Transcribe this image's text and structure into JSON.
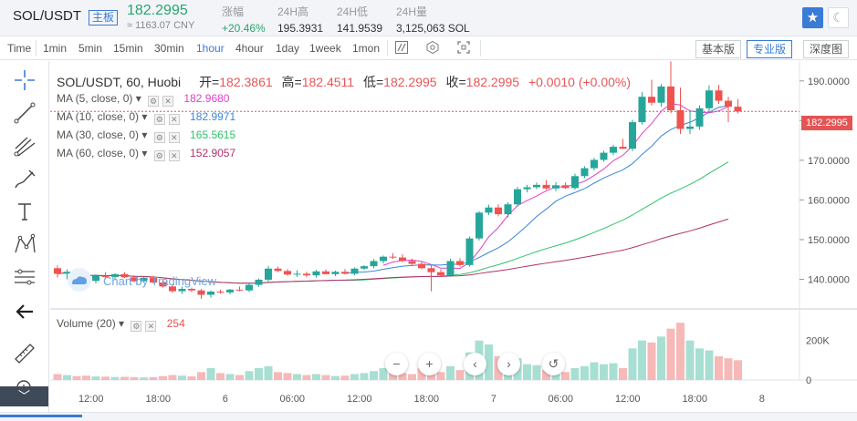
{
  "ticker": {
    "pair": "SOL/USDT",
    "pair_tag": "主板",
    "price": "182.2995",
    "cny": "≈ 1163.07 CNY",
    "stats": [
      {
        "label": "涨幅",
        "value": "+20.46%"
      },
      {
        "label": "24H高",
        "value": "195.3931"
      },
      {
        "label": "24H低",
        "value": "141.9539"
      },
      {
        "label": "24H量",
        "value": "3,125,063 SOL"
      }
    ]
  },
  "toolbar": {
    "timeframes": [
      "Time",
      "1min",
      "5min",
      "15min",
      "30min",
      "1hour",
      "4hour",
      "1day",
      "1week",
      "1mon"
    ],
    "active_timeframe": "1hour",
    "modes": [
      "基本版",
      "专业版",
      "深度图"
    ],
    "active_mode": "专业版"
  },
  "chart": {
    "title": "SOL/USDT, 60, Huobi",
    "ohlc": {
      "open_label": "开=",
      "open": "182.3861",
      "high_label": "高=",
      "high": "182.4511",
      "low_label": "低=",
      "low": "182.2995",
      "close_label": "收=",
      "close": "182.2995",
      "change": "+0.0010 (+0.00%)"
    },
    "mas": [
      {
        "label": "MA (5, close, 0)",
        "value": "182.9680",
        "color": "#e040c8"
      },
      {
        "label": "MA (10, close, 0)",
        "value": "182.9971",
        "color": "#3a86d8"
      },
      {
        "label": "MA (30, close, 0)",
        "value": "165.5615",
        "color": "#2ec36a"
      },
      {
        "label": "MA (60, close, 0)",
        "value": "152.9057",
        "color": "#b2306b"
      }
    ],
    "volume_label": "Volume (20)",
    "volume_value": "254",
    "last_price_tag": "182.2995",
    "price_axis": [
      "190.0000",
      "180.0000",
      "170.0000",
      "160.0000",
      "150.0000",
      "140.0000"
    ],
    "volume_axis": [
      "200K",
      "0"
    ],
    "time_axis": [
      "12:00",
      "18:00",
      "6",
      "06:00",
      "12:00",
      "18:00",
      "7",
      "06:00",
      "12:00",
      "18:00",
      "8"
    ],
    "watermark": "Chart by TradingView"
  },
  "colors": {
    "up": "#26a69a",
    "down": "#ef5350",
    "accent": "#3a7bd5"
  },
  "chart_data": {
    "type": "candlestick",
    "title": "SOL/USDT, 60, Huobi",
    "y_range": [
      133,
      195
    ],
    "volume_range": [
      0,
      300000
    ],
    "candles": [
      {
        "o": 142.8,
        "h": 143.5,
        "l": 140.5,
        "c": 141.4,
        "v": 30000
      },
      {
        "o": 141.4,
        "h": 142.5,
        "l": 140.0,
        "c": 141.9,
        "v": 25000
      },
      {
        "o": 141.9,
        "h": 142.8,
        "l": 140.8,
        "c": 141.1,
        "v": 20000
      },
      {
        "o": 141.1,
        "h": 141.9,
        "l": 139.4,
        "c": 139.6,
        "v": 22000
      },
      {
        "o": 139.6,
        "h": 141.2,
        "l": 139.0,
        "c": 140.9,
        "v": 18000
      },
      {
        "o": 140.9,
        "h": 141.8,
        "l": 140.1,
        "c": 140.6,
        "v": 17000
      },
      {
        "o": 140.6,
        "h": 141.5,
        "l": 139.8,
        "c": 141.3,
        "v": 15000
      },
      {
        "o": 141.3,
        "h": 141.8,
        "l": 140.3,
        "c": 140.5,
        "v": 16000
      },
      {
        "o": 140.5,
        "h": 141.0,
        "l": 139.3,
        "c": 139.5,
        "v": 14000
      },
      {
        "o": 139.5,
        "h": 140.8,
        "l": 139.2,
        "c": 140.4,
        "v": 13000
      },
      {
        "o": 140.4,
        "h": 140.9,
        "l": 139.0,
        "c": 139.2,
        "v": 14000
      },
      {
        "o": 139.2,
        "h": 140.1,
        "l": 137.9,
        "c": 138.2,
        "v": 20000
      },
      {
        "o": 138.2,
        "h": 138.8,
        "l": 136.6,
        "c": 137.0,
        "v": 25000
      },
      {
        "o": 137.0,
        "h": 138.2,
        "l": 136.3,
        "c": 137.6,
        "v": 22000
      },
      {
        "o": 137.6,
        "h": 137.9,
        "l": 136.8,
        "c": 137.2,
        "v": 18000
      },
      {
        "o": 137.2,
        "h": 137.6,
        "l": 135.1,
        "c": 136.1,
        "v": 40000
      },
      {
        "o": 136.1,
        "h": 137.2,
        "l": 135.4,
        "c": 136.9,
        "v": 60000
      },
      {
        "o": 136.9,
        "h": 137.4,
        "l": 136.4,
        "c": 136.7,
        "v": 35000
      },
      {
        "o": 136.7,
        "h": 137.6,
        "l": 136.2,
        "c": 137.4,
        "v": 30000
      },
      {
        "o": 137.4,
        "h": 138.2,
        "l": 137.0,
        "c": 137.2,
        "v": 25000
      },
      {
        "o": 137.2,
        "h": 138.9,
        "l": 136.8,
        "c": 138.6,
        "v": 45000
      },
      {
        "o": 138.6,
        "h": 140.2,
        "l": 138.1,
        "c": 139.9,
        "v": 60000
      },
      {
        "o": 139.9,
        "h": 143.4,
        "l": 139.3,
        "c": 142.7,
        "v": 70000
      },
      {
        "o": 142.7,
        "h": 143.2,
        "l": 141.8,
        "c": 142.1,
        "v": 40000
      },
      {
        "o": 142.1,
        "h": 142.6,
        "l": 140.9,
        "c": 141.2,
        "v": 35000
      },
      {
        "o": 141.2,
        "h": 142.3,
        "l": 140.6,
        "c": 141.4,
        "v": 30000
      },
      {
        "o": 141.4,
        "h": 141.9,
        "l": 140.5,
        "c": 141.0,
        "v": 25000
      },
      {
        "o": 141.0,
        "h": 142.4,
        "l": 140.4,
        "c": 142.0,
        "v": 30000
      },
      {
        "o": 142.0,
        "h": 142.5,
        "l": 141.2,
        "c": 141.3,
        "v": 25000
      },
      {
        "o": 141.3,
        "h": 142.2,
        "l": 140.8,
        "c": 141.9,
        "v": 20000
      },
      {
        "o": 141.9,
        "h": 142.6,
        "l": 141.2,
        "c": 141.4,
        "v": 22000
      },
      {
        "o": 141.4,
        "h": 143.0,
        "l": 141.0,
        "c": 142.7,
        "v": 30000
      },
      {
        "o": 142.7,
        "h": 143.6,
        "l": 142.3,
        "c": 143.3,
        "v": 35000
      },
      {
        "o": 143.3,
        "h": 145.1,
        "l": 142.8,
        "c": 144.6,
        "v": 45000
      },
      {
        "o": 144.6,
        "h": 146.0,
        "l": 144.0,
        "c": 145.7,
        "v": 60000
      },
      {
        "o": 145.7,
        "h": 146.6,
        "l": 145.1,
        "c": 145.5,
        "v": 40000
      },
      {
        "o": 145.5,
        "h": 146.3,
        "l": 144.3,
        "c": 144.6,
        "v": 35000
      },
      {
        "o": 144.6,
        "h": 145.2,
        "l": 143.6,
        "c": 143.9,
        "v": 30000
      },
      {
        "o": 143.9,
        "h": 144.6,
        "l": 142.6,
        "c": 142.8,
        "v": 60000
      },
      {
        "o": 142.8,
        "h": 143.8,
        "l": 137.0,
        "c": 141.8,
        "v": 85000
      },
      {
        "o": 141.8,
        "h": 142.6,
        "l": 140.8,
        "c": 141.0,
        "v": 40000
      },
      {
        "o": 141.0,
        "h": 145.2,
        "l": 140.6,
        "c": 144.6,
        "v": 70000
      },
      {
        "o": 144.6,
        "h": 145.3,
        "l": 143.2,
        "c": 143.6,
        "v": 50000
      },
      {
        "o": 143.6,
        "h": 150.8,
        "l": 143.2,
        "c": 150.3,
        "v": 140000
      },
      {
        "o": 150.3,
        "h": 157.2,
        "l": 149.8,
        "c": 156.8,
        "v": 200000
      },
      {
        "o": 156.8,
        "h": 158.8,
        "l": 156.2,
        "c": 158.1,
        "v": 180000
      },
      {
        "o": 158.1,
        "h": 158.9,
        "l": 155.9,
        "c": 156.4,
        "v": 120000
      },
      {
        "o": 156.4,
        "h": 159.4,
        "l": 155.6,
        "c": 158.9,
        "v": 90000
      },
      {
        "o": 158.9,
        "h": 163.3,
        "l": 158.3,
        "c": 162.7,
        "v": 110000
      },
      {
        "o": 162.7,
        "h": 163.8,
        "l": 161.9,
        "c": 163.2,
        "v": 80000
      },
      {
        "o": 163.2,
        "h": 164.4,
        "l": 162.7,
        "c": 163.8,
        "v": 75000
      },
      {
        "o": 163.8,
        "h": 165.0,
        "l": 162.6,
        "c": 162.9,
        "v": 50000
      },
      {
        "o": 162.9,
        "h": 164.5,
        "l": 162.2,
        "c": 163.7,
        "v": 45000
      },
      {
        "o": 163.7,
        "h": 164.4,
        "l": 162.8,
        "c": 163.0,
        "v": 40000
      },
      {
        "o": 163.0,
        "h": 166.6,
        "l": 162.6,
        "c": 166.0,
        "v": 60000
      },
      {
        "o": 166.0,
        "h": 168.5,
        "l": 165.5,
        "c": 168.0,
        "v": 70000
      },
      {
        "o": 168.0,
        "h": 170.6,
        "l": 167.4,
        "c": 170.1,
        "v": 90000
      },
      {
        "o": 170.1,
        "h": 172.4,
        "l": 169.6,
        "c": 171.9,
        "v": 80000
      },
      {
        "o": 171.9,
        "h": 173.9,
        "l": 171.3,
        "c": 173.4,
        "v": 85000
      },
      {
        "o": 173.4,
        "h": 175.4,
        "l": 172.8,
        "c": 172.9,
        "v": 60000
      },
      {
        "o": 172.9,
        "h": 180.2,
        "l": 172.3,
        "c": 179.6,
        "v": 160000
      },
      {
        "o": 179.6,
        "h": 187.2,
        "l": 179.0,
        "c": 186.0,
        "v": 200000
      },
      {
        "o": 186.0,
        "h": 190.3,
        "l": 183.8,
        "c": 184.5,
        "v": 190000
      },
      {
        "o": 184.5,
        "h": 189.2,
        "l": 183.5,
        "c": 188.6,
        "v": 220000
      },
      {
        "o": 188.6,
        "h": 194.9,
        "l": 181.9,
        "c": 182.6,
        "v": 260000
      },
      {
        "o": 182.6,
        "h": 188.3,
        "l": 176.6,
        "c": 177.9,
        "v": 290000
      },
      {
        "o": 177.9,
        "h": 182.7,
        "l": 176.6,
        "c": 178.5,
        "v": 200000
      },
      {
        "o": 178.5,
        "h": 183.8,
        "l": 177.7,
        "c": 183.1,
        "v": 160000
      },
      {
        "o": 183.1,
        "h": 188.9,
        "l": 182.4,
        "c": 187.6,
        "v": 150000
      },
      {
        "o": 187.6,
        "h": 189.0,
        "l": 184.2,
        "c": 185.0,
        "v": 120000
      },
      {
        "o": 185.0,
        "h": 186.0,
        "l": 179.6,
        "c": 183.5,
        "v": 110000
      },
      {
        "o": 183.5,
        "h": 185.4,
        "l": 181.8,
        "c": 182.3,
        "v": 100000
      }
    ],
    "ma_lines": [
      {
        "name": "MA (5, close, 0)",
        "color": "#e040c8",
        "start": 34,
        "end": 70,
        "from": 143.5,
        "to": 183.0
      },
      {
        "name": "MA (10, close, 0)",
        "color": "#3a86d8",
        "start": 30,
        "end": 70,
        "from": 142.0,
        "to": 183.0
      },
      {
        "name": "MA (30, close, 0)",
        "color": "#2ec36a",
        "start": 0,
        "end": 70,
        "from": 142.0,
        "to": 165.5
      },
      {
        "name": "MA (60, close, 0)",
        "color": "#b2306b",
        "start": 0,
        "end": 70,
        "from": 141.0,
        "to": 152.9
      }
    ]
  }
}
